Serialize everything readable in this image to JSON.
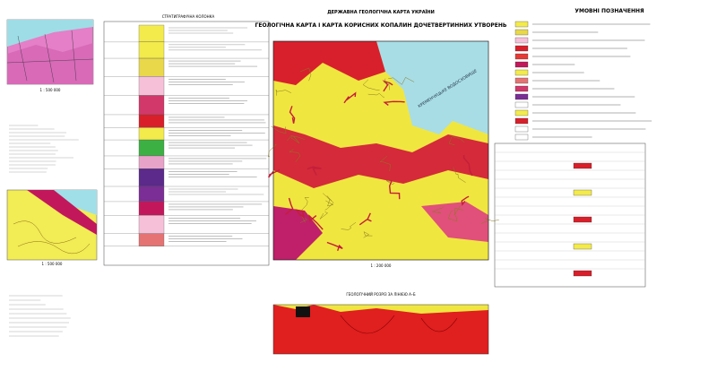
{
  "header": {
    "agency": "ДЕРЖАВНА ГЕОЛОГІЧНА КАРТА УКРАЇНИ",
    "title": "ГЕОЛОГІЧНА КАРТА І КАРТА КОРИСНИХ КОПАЛИН ДОЧЕТВЕРТИННИХ УТВОРЕНЬ"
  },
  "main_map": {
    "scale": "1 : 200 000",
    "water_label": "КРЕМЕНЧУЦЬКЕ ВОДОСХОВИЩЕ"
  },
  "legend": {
    "title": "УМОВНІ ПОЗНАЧЕННЯ"
  },
  "strat_column": {
    "title": "СТРАТИГРАФІЧНА КОЛОНКА"
  },
  "inset_top": {
    "scale": "1 : 500 000"
  },
  "inset_bottom": {
    "scale": "1 : 500 000"
  },
  "section": {
    "title": "ГЕОЛОГІЧНИЙ РОЗРІЗ ЗА ЛІНІЄЮ А–Б"
  }
}
